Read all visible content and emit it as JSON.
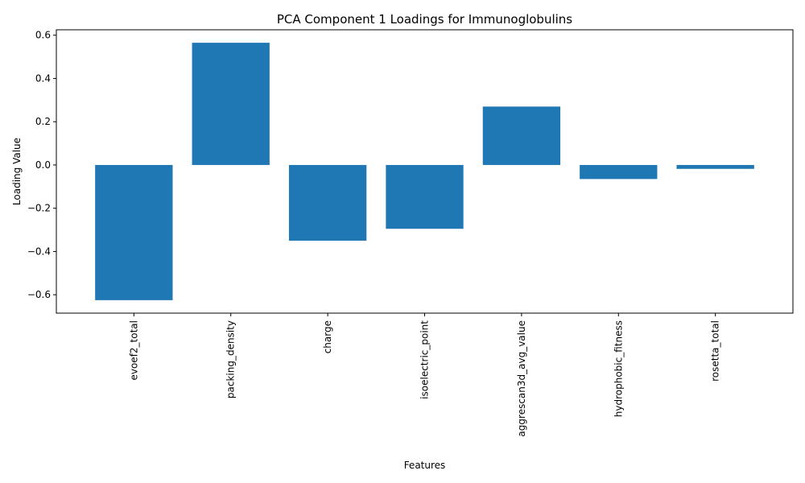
{
  "chart_data": {
    "type": "bar",
    "title": "PCA Component 1 Loadings for Immunoglobulins",
    "xlabel": "Features",
    "ylabel": "Loading Value",
    "categories": [
      "evoef2_total",
      "packing_density",
      "charge",
      "isoelectric_point",
      "aggrescan3d_avg_value",
      "hydrophobic_fitness",
      "rosetta_total"
    ],
    "values": [
      -0.625,
      0.565,
      -0.35,
      -0.295,
      0.27,
      -0.065,
      -0.018
    ],
    "ylim": [
      -0.685,
      0.625
    ],
    "yticks": [
      -0.6,
      -0.4,
      -0.2,
      0.0,
      0.2,
      0.4,
      0.6
    ],
    "ytick_labels": [
      "−0.6",
      "−0.4",
      "−0.2",
      "0.0",
      "0.2",
      "0.4",
      "0.6"
    ],
    "bar_color": "#1f77b4",
    "grid": false,
    "legend": "none"
  }
}
